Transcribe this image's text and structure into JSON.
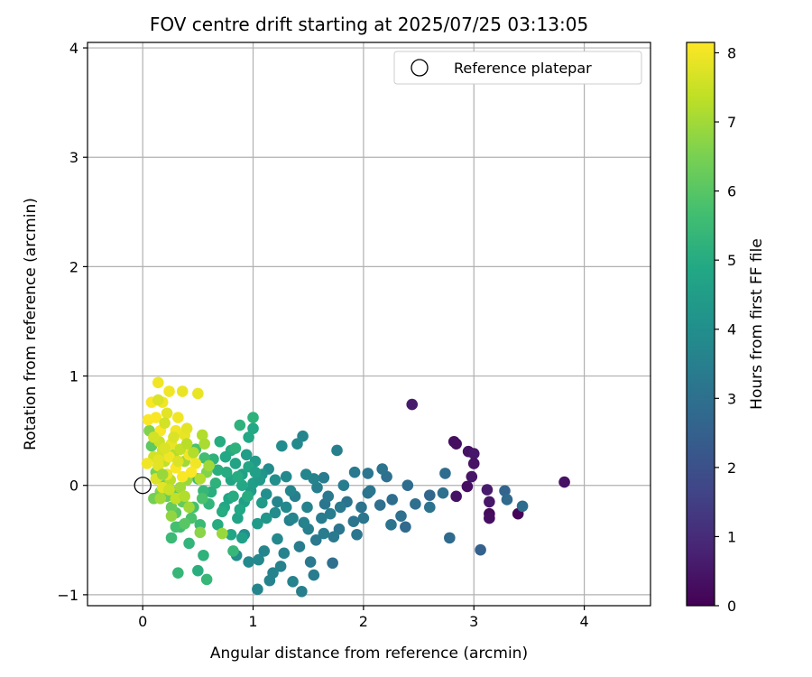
{
  "chart_data": {
    "type": "scatter",
    "title": "FOV centre drift starting at 2025/07/25 03:13:05",
    "xlabel": "Angular distance from reference (arcmin)",
    "ylabel": "Rotation from reference (arcmin)",
    "xlim": [
      -0.5,
      4.6
    ],
    "ylim": [
      -1.1,
      4.05
    ],
    "xticks": [
      0,
      1,
      2,
      3,
      4
    ],
    "yticks": [
      -1,
      0,
      1,
      2,
      3,
      4
    ],
    "grid": true,
    "legend": {
      "placement": "top-right",
      "entries": [
        "Reference platepar"
      ]
    },
    "reference_point": {
      "x": 0,
      "y": 0
    },
    "colorbar": {
      "label": "Hours from first FF file",
      "range": [
        0,
        8.15
      ],
      "ticks": [
        0,
        1,
        2,
        3,
        4,
        5,
        6,
        7,
        8
      ],
      "colormap": "viridis"
    },
    "points": [
      [
        2.82,
        0.4,
        0.3
      ],
      [
        2.84,
        0.38,
        0.3
      ],
      [
        2.95,
        0.31,
        0.4
      ],
      [
        3.0,
        0.29,
        0.5
      ],
      [
        3.0,
        0.2,
        0.4
      ],
      [
        2.98,
        0.08,
        0.5
      ],
      [
        2.94,
        -0.01,
        0.3
      ],
      [
        2.84,
        -0.1,
        0.4
      ],
      [
        3.12,
        -0.04,
        0.6
      ],
      [
        3.14,
        -0.15,
        0.5
      ],
      [
        3.14,
        -0.26,
        0.2
      ],
      [
        3.14,
        -0.3,
        0.3
      ],
      [
        3.4,
        -0.26,
        0.1
      ],
      [
        3.82,
        0.03,
        0.4
      ],
      [
        2.44,
        0.74,
        0.6
      ],
      [
        3.28,
        -0.05,
        2.6
      ],
      [
        3.3,
        -0.13,
        2.8
      ],
      [
        3.44,
        -0.19,
        2.9
      ],
      [
        3.06,
        -0.59,
        2.5
      ],
      [
        2.78,
        -0.48,
        2.8
      ],
      [
        2.74,
        0.11,
        2.9
      ],
      [
        2.72,
        -0.07,
        3.0
      ],
      [
        2.6,
        -0.2,
        3.1
      ],
      [
        2.6,
        -0.09,
        2.7
      ],
      [
        2.4,
        0.0,
        2.9
      ],
      [
        2.47,
        -0.17,
        3.0
      ],
      [
        2.38,
        -0.38,
        2.8
      ],
      [
        2.25,
        -0.36,
        3.1
      ],
      [
        2.26,
        -0.13,
        2.9
      ],
      [
        2.15,
        -0.18,
        3.0
      ],
      [
        2.21,
        0.08,
        3.0
      ],
      [
        2.17,
        0.15,
        3.1
      ],
      [
        2.04,
        0.11,
        3.2
      ],
      [
        2.04,
        -0.07,
        3.1
      ],
      [
        2.0,
        -0.3,
        3.2
      ],
      [
        1.98,
        -0.2,
        3.1
      ],
      [
        1.92,
        0.12,
        3.3
      ],
      [
        1.91,
        -0.33,
        3.2
      ],
      [
        1.94,
        -0.45,
        3.2
      ],
      [
        1.85,
        -0.15,
        3.1
      ],
      [
        1.79,
        -0.2,
        3.3
      ],
      [
        1.82,
        0.0,
        3.4
      ],
      [
        1.78,
        -0.4,
        3.2
      ],
      [
        1.73,
        -0.47,
        3.3
      ],
      [
        1.72,
        -0.71,
        3.0
      ],
      [
        1.7,
        -0.26,
        3.4
      ],
      [
        1.65,
        -0.17,
        3.2
      ],
      [
        1.64,
        -0.44,
        3.4
      ],
      [
        1.62,
        -0.3,
        3.4
      ],
      [
        1.58,
        -0.02,
        3.5
      ],
      [
        1.57,
        -0.5,
        3.3
      ],
      [
        1.55,
        -0.82,
        3.4
      ],
      [
        1.52,
        -0.7,
        3.3
      ],
      [
        1.5,
        -0.4,
        3.5
      ],
      [
        1.49,
        -0.2,
        3.6
      ],
      [
        1.45,
        0.45,
        3.7
      ],
      [
        1.44,
        -0.97,
        3.5
      ],
      [
        1.42,
        -0.56,
        3.4
      ],
      [
        1.4,
        0.38,
        3.8
      ],
      [
        1.38,
        -0.1,
        3.5
      ],
      [
        1.36,
        -0.88,
        3.6
      ],
      [
        1.34,
        -0.05,
        3.7
      ],
      [
        1.33,
        -0.32,
        3.5
      ],
      [
        1.3,
        0.08,
        3.8
      ],
      [
        1.28,
        -0.62,
        3.6
      ],
      [
        1.26,
        0.36,
        3.9
      ],
      [
        1.25,
        -0.74,
        3.6
      ],
      [
        1.22,
        -0.15,
        3.7
      ],
      [
        1.22,
        -0.49,
        3.8
      ],
      [
        1.2,
        -0.25,
        3.9
      ],
      [
        1.18,
        -0.8,
        3.6
      ],
      [
        1.15,
        -0.87,
        3.6
      ],
      [
        1.14,
        0.15,
        3.9
      ],
      [
        1.12,
        -0.08,
        4.0
      ],
      [
        1.1,
        -0.6,
        3.7
      ],
      [
        1.05,
        -0.68,
        3.8
      ],
      [
        1.04,
        -0.95,
        3.7
      ],
      [
        0.96,
        -0.7,
        3.8
      ],
      [
        0.92,
        -0.45,
        4.0
      ],
      [
        0.85,
        -0.64,
        3.9
      ],
      [
        1.76,
        0.32,
        3.5
      ],
      [
        1.64,
        0.07,
        3.4
      ],
      [
        1.55,
        0.06,
        3.6
      ],
      [
        1.48,
        0.1,
        3.7
      ],
      [
        2.06,
        -0.05,
        3.2
      ],
      [
        2.34,
        -0.28,
        3.0
      ],
      [
        1.68,
        -0.1,
        3.3
      ],
      [
        1.36,
        -0.3,
        3.7
      ],
      [
        1.3,
        -0.2,
        3.8
      ],
      [
        1.46,
        -0.34,
        3.6
      ],
      [
        1.2,
        0.05,
        4.0
      ],
      [
        1.08,
        0.1,
        4.2
      ],
      [
        1.0,
        0.52,
        4.9
      ],
      [
        1.0,
        0.62,
        5.2
      ],
      [
        0.96,
        0.44,
        4.9
      ],
      [
        0.88,
        0.55,
        5.2
      ],
      [
        0.8,
        0.32,
        5.0
      ],
      [
        0.75,
        0.26,
        4.9
      ],
      [
        0.7,
        0.4,
        5.0
      ],
      [
        0.68,
        0.14,
        5.1
      ],
      [
        0.64,
        0.24,
        5.2
      ],
      [
        0.66,
        0.02,
        5.2
      ],
      [
        0.62,
        -0.06,
        5.1
      ],
      [
        0.68,
        -0.36,
        5.0
      ],
      [
        0.74,
        -0.2,
        4.9
      ],
      [
        0.78,
        -0.12,
        4.8
      ],
      [
        0.8,
        0.05,
        4.8
      ],
      [
        0.84,
        0.2,
        4.7
      ],
      [
        0.86,
        -0.3,
        4.7
      ],
      [
        0.9,
        0.1,
        4.6
      ],
      [
        0.92,
        -0.15,
        4.6
      ],
      [
        0.94,
        0.28,
        4.5
      ],
      [
        0.98,
        -0.05,
        4.5
      ],
      [
        1.0,
        0.02,
        4.5
      ],
      [
        1.02,
        0.22,
        4.4
      ],
      [
        1.04,
        -0.35,
        4.4
      ],
      [
        1.06,
        0.05,
        4.4
      ],
      [
        1.08,
        -0.16,
        4.4
      ],
      [
        0.9,
        -0.48,
        4.6
      ],
      [
        0.8,
        -0.45,
        4.8
      ],
      [
        0.76,
        0.12,
        5.0
      ],
      [
        0.72,
        -0.24,
        5.0
      ],
      [
        0.96,
        0.17,
        4.8
      ],
      [
        0.9,
        0.0,
        4.9
      ],
      [
        0.86,
        0.08,
        5.0
      ],
      [
        0.95,
        -0.1,
        5.0
      ],
      [
        1.02,
        0.12,
        4.6
      ],
      [
        0.88,
        -0.22,
        4.9
      ],
      [
        0.82,
        -0.1,
        5.0
      ],
      [
        1.12,
        -0.3,
        4.3
      ],
      [
        0.84,
        0.34,
        5.2
      ],
      [
        0.82,
        -0.6,
        5.4
      ],
      [
        0.6,
        -0.17,
        5.3
      ],
      [
        0.55,
        -0.05,
        5.4
      ],
      [
        0.5,
        0.06,
        5.6
      ],
      [
        0.46,
        -0.2,
        5.7
      ],
      [
        0.55,
        -0.64,
        5.2
      ],
      [
        0.58,
        -0.86,
        5.4
      ],
      [
        0.5,
        -0.78,
        5.1
      ],
      [
        0.42,
        -0.53,
        5.3
      ],
      [
        0.32,
        -0.8,
        5.4
      ],
      [
        0.34,
        -0.38,
        5.6
      ],
      [
        0.26,
        -0.48,
        5.5
      ],
      [
        0.3,
        -0.38,
        5.7
      ],
      [
        0.44,
        -0.3,
        5.8
      ],
      [
        0.52,
        -0.36,
        5.5
      ],
      [
        0.56,
        0.25,
        5.6
      ],
      [
        0.58,
        0.12,
        6.6
      ],
      [
        0.48,
        0.33,
        5.8
      ],
      [
        0.54,
        -0.12,
        5.8
      ],
      [
        0.38,
        -0.35,
        6.0
      ],
      [
        0.36,
        -0.15,
        6.2
      ],
      [
        0.3,
        -0.25,
        6.0
      ],
      [
        0.28,
        -0.06,
        6.1
      ],
      [
        0.26,
        -0.2,
        6.2
      ],
      [
        0.22,
        -0.1,
        6.3
      ],
      [
        0.2,
        0.0,
        6.4
      ],
      [
        0.16,
        -0.06,
        6.5
      ],
      [
        0.12,
        0.12,
        6.5
      ],
      [
        0.1,
        -0.12,
        6.4
      ],
      [
        0.08,
        0.36,
        6.1
      ],
      [
        0.06,
        0.5,
        6.6
      ],
      [
        0.52,
        -0.43,
        6.7
      ],
      [
        0.72,
        -0.44,
        6.9
      ],
      [
        0.4,
        0.05,
        6.9
      ],
      [
        0.38,
        0.22,
        7.0
      ],
      [
        0.34,
        -0.02,
        7.0
      ],
      [
        0.28,
        0.28,
        7.2
      ],
      [
        0.25,
        0.05,
        7.3
      ],
      [
        0.2,
        0.22,
        7.4
      ],
      [
        0.18,
        0.32,
        7.6
      ],
      [
        0.15,
        0.4,
        7.5
      ],
      [
        0.1,
        0.26,
        7.6
      ],
      [
        0.12,
        0.06,
        7.7
      ],
      [
        0.14,
        0.18,
        7.8
      ],
      [
        0.18,
        -0.02,
        7.8
      ],
      [
        0.22,
        0.1,
        7.9
      ],
      [
        0.26,
        0.38,
        7.9
      ],
      [
        0.3,
        0.5,
        8.0
      ],
      [
        0.32,
        0.62,
        8.0
      ],
      [
        0.38,
        0.46,
        7.9
      ],
      [
        0.42,
        0.28,
        8.0
      ],
      [
        0.48,
        0.2,
        8.0
      ],
      [
        0.44,
        0.12,
        8.1
      ],
      [
        0.36,
        0.08,
        8.1
      ],
      [
        0.3,
        0.16,
        8.1
      ],
      [
        0.24,
        0.26,
        8.0
      ],
      [
        0.16,
        0.5,
        8.1
      ],
      [
        0.12,
        0.62,
        8.1
      ],
      [
        0.05,
        0.6,
        8.1
      ],
      [
        0.04,
        0.2,
        8.0
      ],
      [
        0.08,
        0.76,
        8.1
      ],
      [
        0.14,
        0.94,
        8.0
      ],
      [
        0.18,
        0.76,
        8.0
      ],
      [
        0.24,
        0.86,
        8.0
      ],
      [
        0.36,
        0.86,
        7.9
      ],
      [
        0.5,
        0.84,
        7.9
      ],
      [
        0.14,
        0.78,
        7.7
      ],
      [
        0.22,
        0.66,
        7.8
      ],
      [
        0.28,
        0.44,
        7.7
      ],
      [
        0.34,
        0.33,
        7.4
      ],
      [
        0.4,
        0.38,
        7.3
      ],
      [
        0.46,
        0.3,
        7.2
      ],
      [
        0.52,
        0.06,
        7.2
      ],
      [
        0.54,
        0.46,
        7.2
      ],
      [
        0.2,
        0.57,
        7.6
      ],
      [
        0.1,
        0.44,
        7.6
      ],
      [
        0.3,
        -0.12,
        7.4
      ],
      [
        0.24,
        -0.04,
        7.5
      ],
      [
        0.38,
        -0.1,
        7.2
      ],
      [
        0.42,
        -0.2,
        7.0
      ],
      [
        0.2,
        0.34,
        7.7
      ],
      [
        0.14,
        0.23,
        7.8
      ],
      [
        0.32,
        0.22,
        7.7
      ],
      [
        0.4,
        0.52,
        7.8
      ],
      [
        0.6,
        0.18,
        7.0
      ],
      [
        0.56,
        0.38,
        7.1
      ],
      [
        0.26,
        -0.28,
        6.8
      ],
      [
        0.18,
        0.1,
        6.9
      ],
      [
        0.16,
        -0.12,
        7.0
      ]
    ]
  }
}
